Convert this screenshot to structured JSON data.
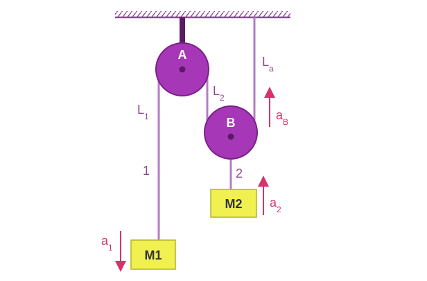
{
  "colors": {
    "rope": "#b47cc4",
    "pulley_fill": "#a637b6",
    "pulley_stroke": "#7a1f87",
    "axle": "#5a1a66",
    "ceiling": "#8e4a8e",
    "mass_fill": "#f0f050",
    "mass_stroke": "#b3b32a",
    "label": "#8e4a8e",
    "accel": "#d6336c"
  },
  "pulleys": {
    "a": {
      "label": "A"
    },
    "b": {
      "label": "B"
    }
  },
  "masses": {
    "m1": {
      "label": "M1"
    },
    "m2": {
      "label": "M2"
    }
  },
  "lengths": {
    "l1": {
      "main": "L",
      "sub": "1"
    },
    "l2": {
      "main": "L",
      "sub": "2"
    },
    "la": {
      "main": "L",
      "sub": "a"
    }
  },
  "strings": {
    "s1": "1",
    "s2": "2"
  },
  "accelerations": {
    "a1": {
      "main": "a",
      "sub": "1"
    },
    "a2": {
      "main": "a",
      "sub": "2"
    },
    "aB": {
      "main": "a",
      "sub": "B"
    }
  }
}
